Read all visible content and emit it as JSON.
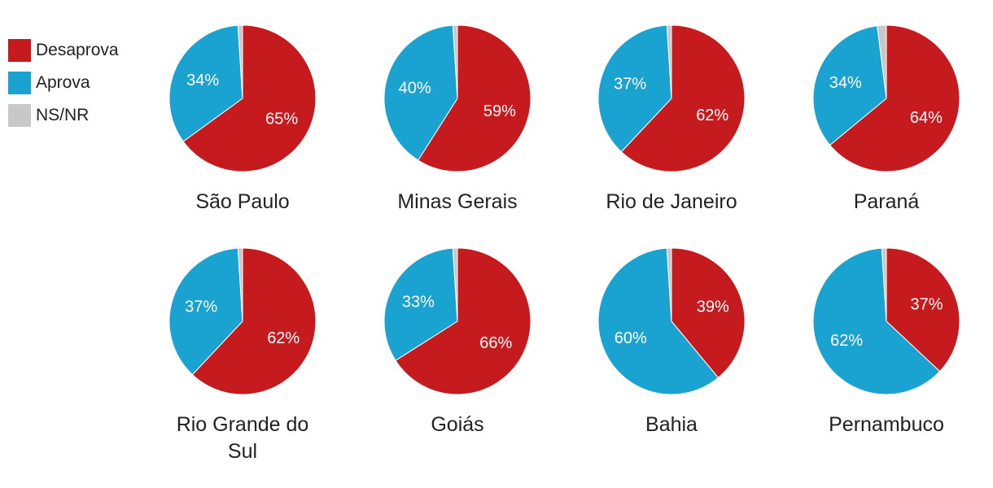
{
  "chart_data": {
    "type": "pie",
    "legend_position": "top-left",
    "series": [
      {
        "name": "Desaprova",
        "color": "#c51b1e"
      },
      {
        "name": "Aprova",
        "color": "#1aa3d0"
      },
      {
        "name": "NS/NR",
        "color": "#c8c8c8"
      }
    ],
    "charts": [
      {
        "title": [
          "São Paulo"
        ],
        "values": [
          65,
          34,
          1
        ],
        "labels": [
          "65%",
          "34%",
          ""
        ]
      },
      {
        "title": [
          "Minas Gerais"
        ],
        "values": [
          59,
          40,
          1
        ],
        "labels": [
          "59%",
          "40%",
          ""
        ]
      },
      {
        "title": [
          "Rio de Janeiro"
        ],
        "values": [
          62,
          37,
          1
        ],
        "labels": [
          "62%",
          "37%",
          ""
        ]
      },
      {
        "title": [
          "Paraná"
        ],
        "values": [
          64,
          34,
          2
        ],
        "labels": [
          "64%",
          "34%",
          ""
        ]
      },
      {
        "title": [
          "Rio Grande do",
          "Sul"
        ],
        "values": [
          62,
          37,
          1
        ],
        "labels": [
          "62%",
          "37%",
          ""
        ]
      },
      {
        "title": [
          "Goiás"
        ],
        "values": [
          66,
          33,
          1
        ],
        "labels": [
          "66%",
          "33%",
          ""
        ]
      },
      {
        "title": [
          "Bahia"
        ],
        "values": [
          39,
          60,
          1
        ],
        "labels": [
          "39%",
          "60%",
          ""
        ]
      },
      {
        "title": [
          "Pernambuco"
        ],
        "values": [
          37,
          62,
          1
        ],
        "labels": [
          "37%",
          "62%",
          ""
        ]
      }
    ]
  }
}
